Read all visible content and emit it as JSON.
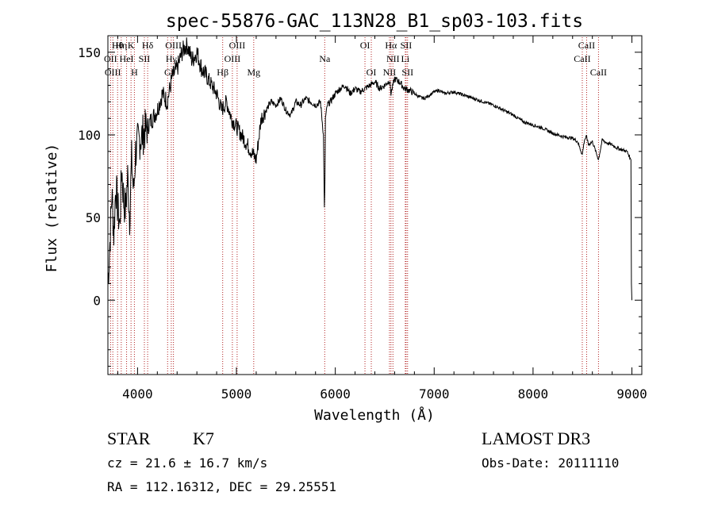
{
  "chart_data": {
    "type": "line",
    "title": "spec-55876-GAC_113N28_B1_sp03-103.fits",
    "xlabel": "Wavelength (Å)",
    "ylabel": "Flux (relative)",
    "xlim": [
      3700,
      9100
    ],
    "ylim": [
      -45,
      160
    ],
    "x_ticks": [
      4000,
      5000,
      6000,
      7000,
      8000,
      9000
    ],
    "x_tick_labels": [
      "4000",
      "5000",
      "6000",
      "7000",
      "8000",
      "9000"
    ],
    "y_ticks": [
      0,
      50,
      100,
      150
    ],
    "y_tick_labels": [
      "0",
      "50",
      "100",
      "150"
    ],
    "grid": false,
    "series": [
      {
        "name": "flux",
        "x": [
          3700,
          3720,
          3740,
          3760,
          3780,
          3800,
          3820,
          3840,
          3860,
          3880,
          3900,
          3920,
          3940,
          3960,
          3980,
          4000,
          4050,
          4100,
          4150,
          4200,
          4250,
          4300,
          4350,
          4400,
          4450,
          4500,
          4550,
          4600,
          4650,
          4700,
          4750,
          4800,
          4850,
          4900,
          4950,
          5000,
          5050,
          5100,
          5150,
          5200,
          5250,
          5300,
          5350,
          5400,
          5450,
          5500,
          5550,
          5600,
          5650,
          5700,
          5750,
          5800,
          5850,
          5880,
          5890,
          5895,
          5900,
          5920,
          5950,
          6000,
          6050,
          6100,
          6150,
          6200,
          6250,
          6300,
          6350,
          6400,
          6450,
          6500,
          6550,
          6563,
          6600,
          6650,
          6700,
          6750,
          6800,
          6850,
          6900,
          6950,
          7000,
          7050,
          7100,
          7200,
          7300,
          7400,
          7500,
          7600,
          7700,
          7800,
          7900,
          8000,
          8100,
          8200,
          8300,
          8400,
          8450,
          8498,
          8520,
          8542,
          8560,
          8600,
          8662,
          8700,
          8750,
          8800,
          8850,
          8900,
          8950,
          8990,
          8995,
          9000
        ],
        "y": [
          10,
          35,
          65,
          40,
          70,
          55,
          45,
          80,
          60,
          55,
          75,
          50,
          85,
          65,
          90,
          95,
          100,
          105,
          110,
          115,
          125,
          120,
          135,
          140,
          150,
          155,
          145,
          150,
          140,
          135,
          130,
          125,
          115,
          120,
          110,
          105,
          100,
          95,
          90,
          85,
          110,
          115,
          120,
          118,
          122,
          115,
          112,
          120,
          118,
          122,
          120,
          118,
          120,
          100,
          55,
          70,
          110,
          118,
          120,
          125,
          128,
          130,
          125,
          128,
          126,
          128,
          130,
          132,
          128,
          130,
          133,
          125,
          134,
          132,
          128,
          127,
          125,
          123,
          122,
          124,
          126,
          127,
          125,
          126,
          124,
          122,
          120,
          118,
          115,
          112,
          108,
          106,
          104,
          101,
          99,
          98,
          96,
          88,
          97,
          99,
          94,
          96,
          85,
          97,
          95,
          94,
          92,
          91,
          90,
          85,
          10,
          0
        ]
      }
    ],
    "lines": [
      {
        "wavelength": 3727,
        "row": 2,
        "label": "OII"
      },
      {
        "wavelength": 3750,
        "row": 3,
        "label": "OIII"
      },
      {
        "wavelength": 3798,
        "row": 1,
        "label": "Hθ"
      },
      {
        "wavelength": 3835,
        "row": 1,
        "label": "Hη"
      },
      {
        "wavelength": 3889,
        "row": 2,
        "label": "HeI"
      },
      {
        "wavelength": 3934,
        "row": 1,
        "label": "K"
      },
      {
        "wavelength": 3968,
        "row": 3,
        "label": "H"
      },
      {
        "wavelength": 4069,
        "row": 2,
        "label": "SII"
      },
      {
        "wavelength": 4102,
        "row": 1,
        "label": "Hδ"
      },
      {
        "wavelength": 4304,
        "row": 3,
        "label": "G"
      },
      {
        "wavelength": 4341,
        "row": 2,
        "label": "Hγ"
      },
      {
        "wavelength": 4363,
        "row": 1,
        "label": "OIII"
      },
      {
        "wavelength": 4861,
        "row": 3,
        "label": "Hβ"
      },
      {
        "wavelength": 4959,
        "row": 2,
        "label": "OIII"
      },
      {
        "wavelength": 5007,
        "row": 1,
        "label": "OIII"
      },
      {
        "wavelength": 5175,
        "row": 3,
        "label": "Mg"
      },
      {
        "wavelength": 5893,
        "row": 2,
        "label": "Na"
      },
      {
        "wavelength": 6300,
        "row": 1,
        "label": "OI"
      },
      {
        "wavelength": 6364,
        "row": 3,
        "label": "OI"
      },
      {
        "wavelength": 6548,
        "row": 3,
        "label": "NII"
      },
      {
        "wavelength": 6563,
        "row": 1,
        "label": "Hα"
      },
      {
        "wavelength": 6583,
        "row": 2,
        "label": "NII"
      },
      {
        "wavelength": 6708,
        "row": 2,
        "label": "Li"
      },
      {
        "wavelength": 6716,
        "row": 1,
        "label": "SII"
      },
      {
        "wavelength": 6731,
        "row": 3,
        "label": "SII"
      },
      {
        "wavelength": 8498,
        "row": 2,
        "label": "CaII"
      },
      {
        "wavelength": 8542,
        "row": 1,
        "label": "CaII"
      },
      {
        "wavelength": 8662,
        "row": 3,
        "label": "CaII"
      }
    ],
    "line_color": "#b22222"
  },
  "info": {
    "class": "STAR",
    "subclass": "K7",
    "survey": "LAMOST DR3",
    "cz": "cz = 21.6 ± 16.7 km/s",
    "obs_date": "Obs-Date: 20111110",
    "radec": "RA = 112.16312, DEC =  29.25551"
  }
}
